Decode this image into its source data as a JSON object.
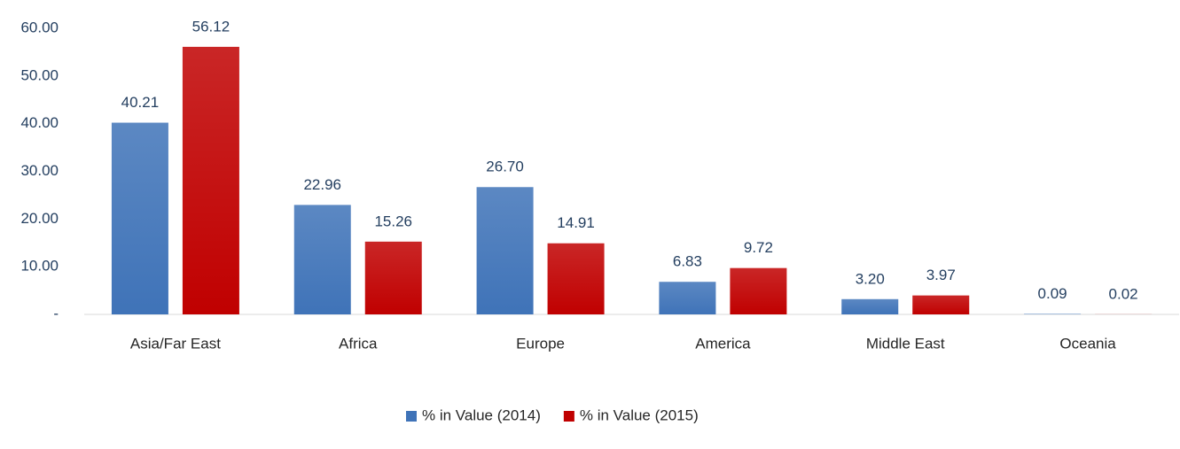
{
  "chart_data": {
    "type": "bar",
    "categories": [
      "Asia/Far East",
      "Africa",
      "Europe",
      "America",
      "Middle East",
      "Oceania"
    ],
    "series": [
      {
        "name": "% in Value (2014)",
        "color": "#3f73b8",
        "values": [
          40.21,
          22.96,
          26.7,
          6.83,
          3.2,
          0.09
        ],
        "value_labels": [
          "40.21",
          "22.96",
          "26.70",
          "6.83",
          "3.20",
          "0.09"
        ]
      },
      {
        "name": "% in Value (2015)",
        "color": "#c00000",
        "values": [
          56.12,
          15.26,
          14.91,
          9.72,
          3.97,
          0.02
        ],
        "value_labels": [
          "56.12",
          "15.26",
          "14.91",
          "9.72",
          "3.97",
          "0.02"
        ]
      }
    ],
    "ylim": [
      0,
      60
    ],
    "yticks": [
      {
        "value": 0,
        "label": "-"
      },
      {
        "value": 10,
        "label": "10.00"
      },
      {
        "value": 20,
        "label": "20.00"
      },
      {
        "value": 30,
        "label": "30.00"
      },
      {
        "value": 40,
        "label": "40.00"
      },
      {
        "value": 50,
        "label": "50.00"
      },
      {
        "value": 60,
        "label": "60.00"
      }
    ],
    "legend": "bottom"
  }
}
